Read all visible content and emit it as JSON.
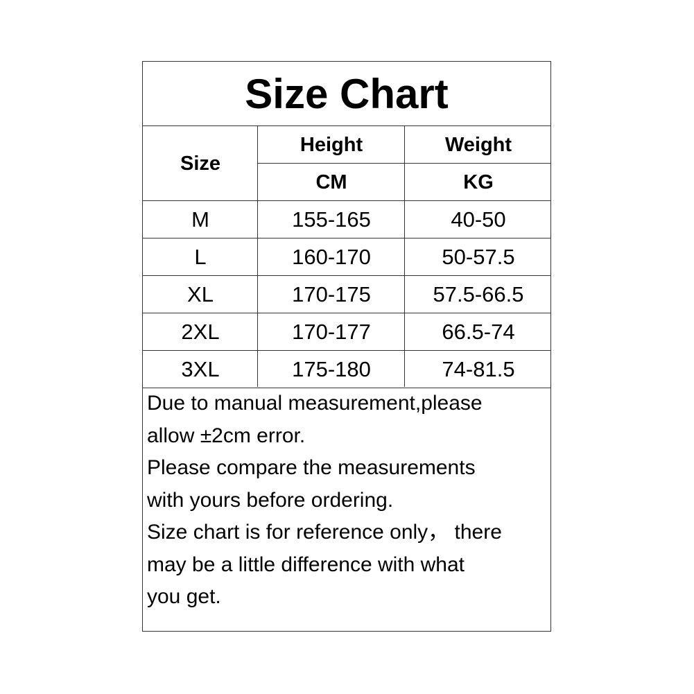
{
  "title": "Size Chart",
  "headers": {
    "size": "Size",
    "height": "Height",
    "height_unit": "CM",
    "weight": "Weight",
    "weight_unit": "KG"
  },
  "rows": [
    {
      "size": "M",
      "height": "155-165",
      "weight": "40-50"
    },
    {
      "size": "L",
      "height": "160-170",
      "weight": "50-57.5"
    },
    {
      "size": "XL",
      "height": "170-175",
      "weight": "57.5-66.5"
    },
    {
      "size": "2XL",
      "height": "170-177",
      "weight": "66.5-74"
    },
    {
      "size": "3XL",
      "height": "175-180",
      "weight": "74-81.5"
    }
  ],
  "notes": [
    "Due to manual measurement,please",
    "allow ±2cm error.",
    "Please compare the measurements",
    "with yours before ordering.",
    "Size chart is for reference only， there",
    "may be a little difference with what",
    "you get."
  ]
}
